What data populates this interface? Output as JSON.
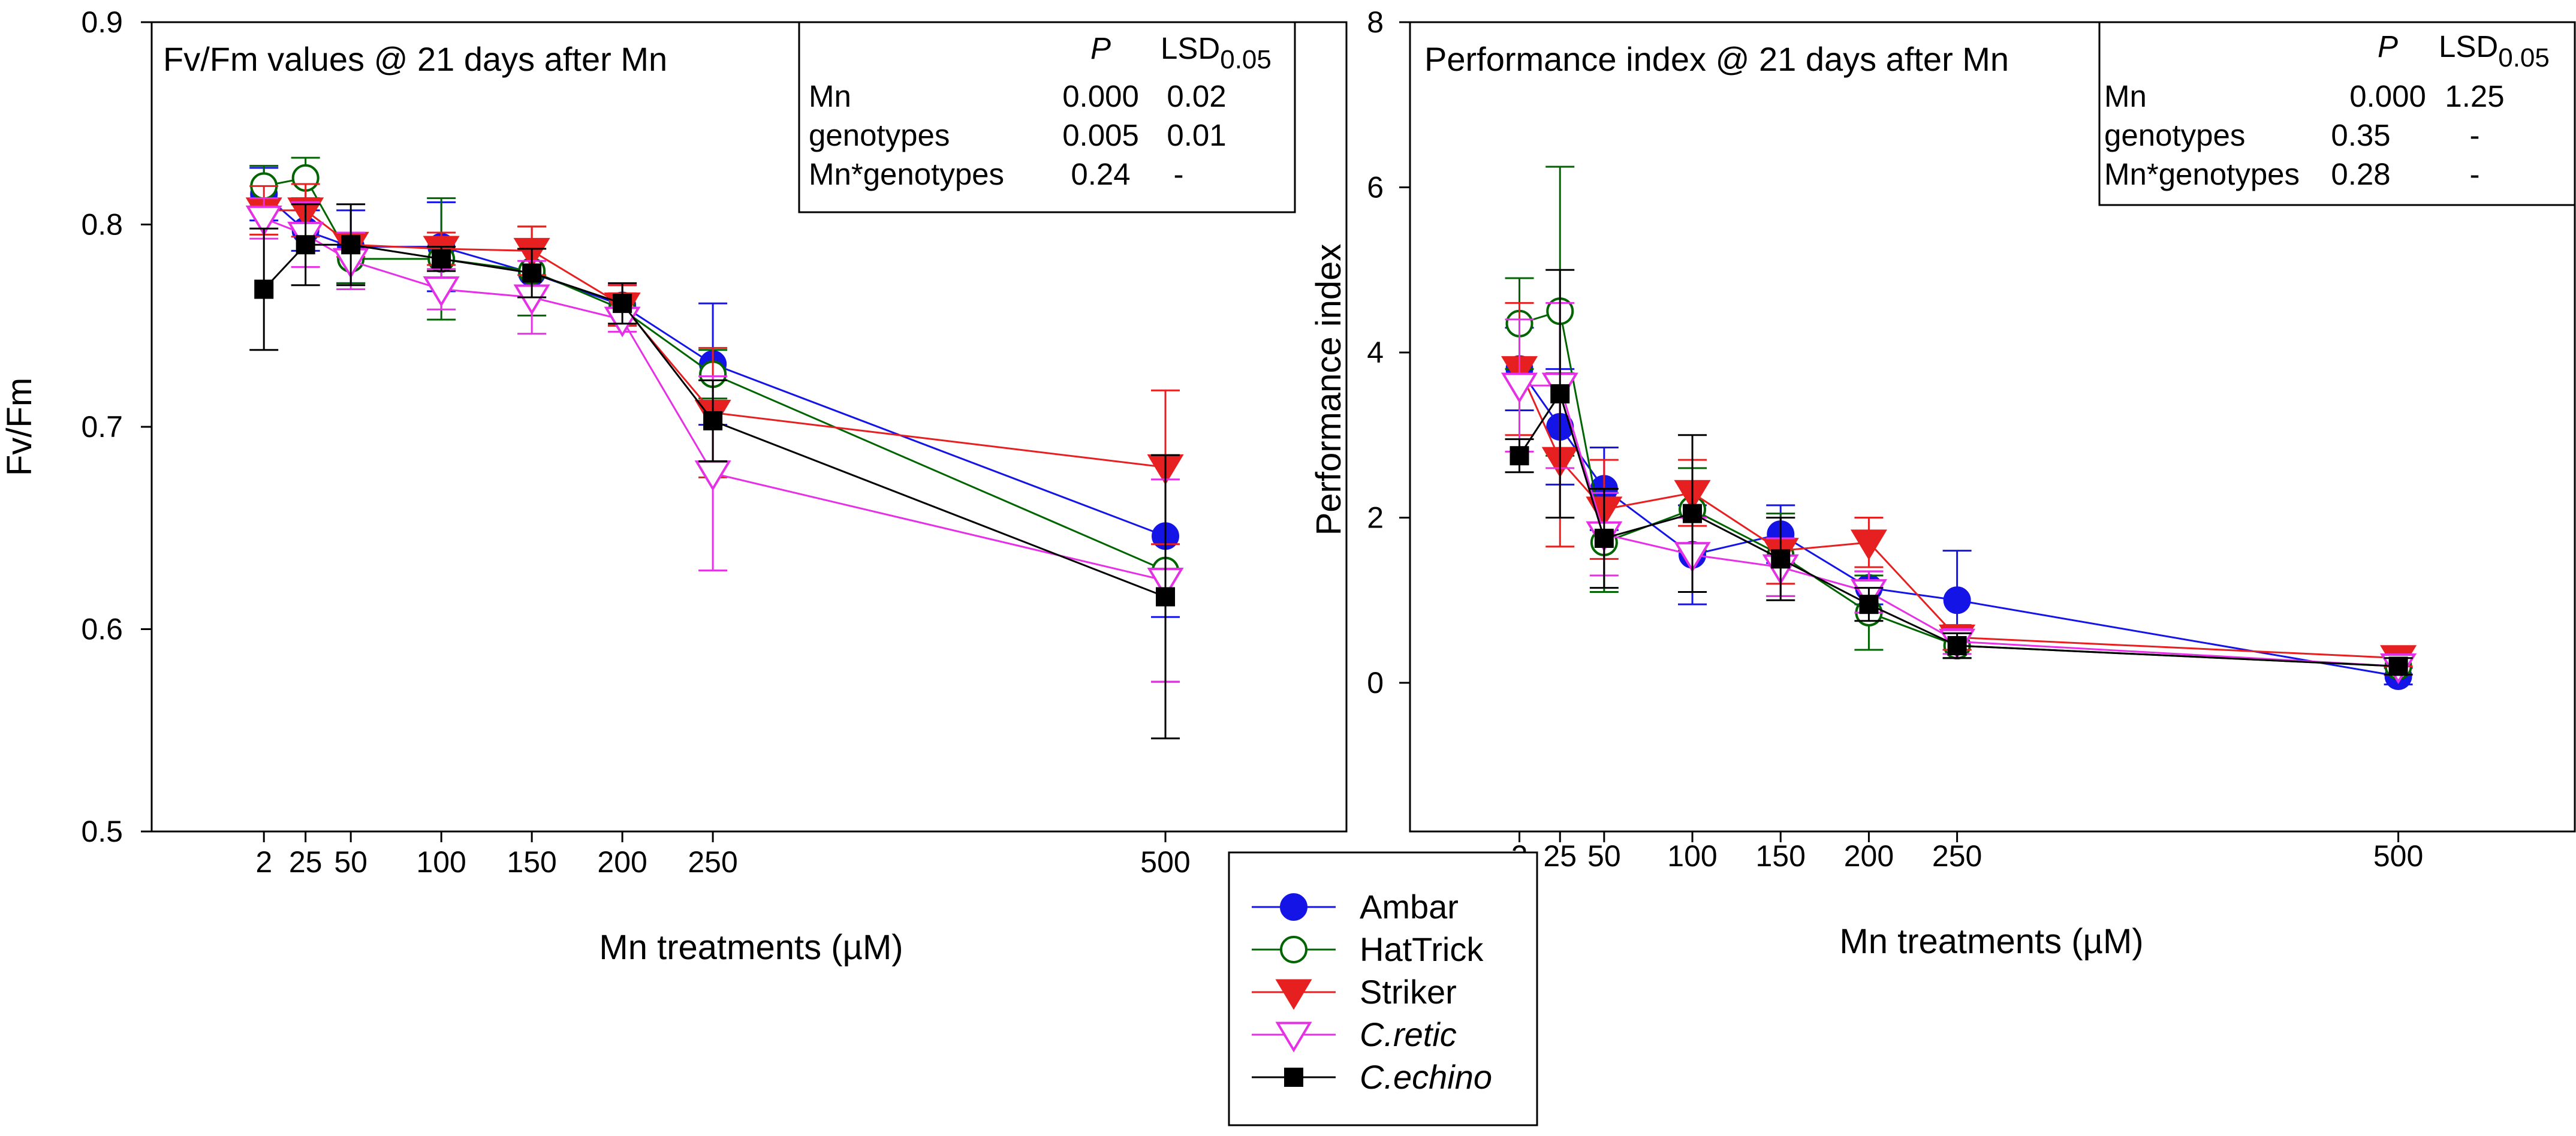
{
  "chart_data": [
    {
      "type": "line",
      "title": "Fv/Fm values @ 21 days after Mn",
      "xlabel": "Mn treatments (µM)",
      "ylabel": "Fv/Fm",
      "xlim": [
        -60,
        600
      ],
      "ylim": [
        0.5,
        0.9
      ],
      "x_ticks": [
        2,
        25,
        50,
        100,
        150,
        200,
        250,
        500
      ],
      "y_ticks": [
        0.5,
        0.6,
        0.7,
        0.8,
        0.9
      ],
      "x_tick_labels": [
        "2",
        "25",
        "50",
        "100",
        "150",
        "200",
        "250",
        "500"
      ],
      "y_tick_labels": [
        "0.5",
        "0.6",
        "0.7",
        "0.8",
        "0.9"
      ],
      "x": [
        2,
        25,
        50,
        100,
        150,
        200,
        250,
        500
      ],
      "series": [
        {
          "name": "Ambar",
          "color": "#1414e6",
          "marker": "circle-filled",
          "values": [
            0.815,
            0.797,
            0.789,
            0.789,
            0.776,
            0.76,
            0.731,
            0.646
          ],
          "errors": [
            0.013,
            0.01,
            0.018,
            0.022,
            0.012,
            0.01,
            0.03,
            0.04
          ]
        },
        {
          "name": "HatTrick",
          "color": "#006400",
          "marker": "circle-open",
          "values": [
            0.819,
            0.823,
            0.783,
            0.783,
            0.777,
            0.758,
            0.726,
            0.629
          ],
          "errors": [
            0.01,
            0.01,
            0.012,
            0.03,
            0.022,
            0.008,
            0.012,
            0.055
          ]
        },
        {
          "name": "Striker",
          "color": "#e62020",
          "marker": "triangle-down-filled",
          "values": [
            0.807,
            0.807,
            0.79,
            0.788,
            0.787,
            0.76,
            0.707,
            0.68
          ],
          "errors": [
            0.012,
            0.013,
            0.006,
            0.008,
            0.012,
            0.01,
            0.032,
            0.038
          ]
        },
        {
          "name": "C.retic",
          "color": "#e630e6",
          "marker": "triangle-down-open",
          "values": [
            0.803,
            0.795,
            0.782,
            0.768,
            0.764,
            0.753,
            0.677,
            0.624
          ],
          "errors": [
            0.01,
            0.016,
            0.014,
            0.01,
            0.018,
            0.006,
            0.048,
            0.05
          ]
        },
        {
          "name": "C.echino",
          "color": "#000000",
          "marker": "square-filled",
          "values": [
            0.768,
            0.79,
            0.79,
            0.783,
            0.776,
            0.761,
            0.703,
            0.616
          ],
          "errors": [
            0.03,
            0.02,
            0.02,
            0.006,
            0.012,
            0.01,
            0.02,
            0.07
          ]
        }
      ],
      "stats_table": {
        "headers": [
          "",
          "P",
          "LSD",
          "0.05"
        ],
        "rows": [
          [
            "Mn",
            "0.000",
            "0.02"
          ],
          [
            "genotypes",
            "0.005",
            "0.01"
          ],
          [
            "Mn*genotypes",
            "0.24",
            "-"
          ]
        ]
      }
    },
    {
      "type": "line",
      "title": "Performance index @ 21 days after Mn",
      "xlabel": "Mn treatments (µM)",
      "ylabel": "Performance index",
      "xlim": [
        -60,
        600
      ],
      "ylim": [
        -1.8,
        8
      ],
      "x_ticks": [
        2,
        25,
        50,
        100,
        150,
        200,
        250,
        500
      ],
      "y_ticks": [
        0,
        2,
        4,
        6,
        8
      ],
      "x_tick_labels": [
        "2",
        "25",
        "50",
        "100",
        "150",
        "200",
        "250",
        "500"
      ],
      "y_tick_labels": [
        "0",
        "2",
        "4",
        "6",
        "8"
      ],
      "x": [
        2,
        25,
        50,
        100,
        150,
        200,
        250,
        500
      ],
      "series": [
        {
          "name": "Ambar",
          "color": "#1414e6",
          "marker": "circle-filled",
          "values": [
            3.8,
            3.1,
            2.35,
            1.55,
            1.8,
            1.15,
            1.0,
            0.08
          ],
          "errors": [
            0.5,
            0.7,
            0.5,
            0.6,
            0.35,
            0.2,
            0.6,
            0.1
          ]
        },
        {
          "name": "HatTrick",
          "color": "#006400",
          "marker": "circle-open",
          "values": [
            4.35,
            4.5,
            1.7,
            2.1,
            1.55,
            0.85,
            0.45,
            0.2
          ],
          "errors": [
            0.55,
            1.75,
            0.6,
            0.5,
            0.5,
            0.45,
            0.15,
            0.1
          ]
        },
        {
          "name": "Striker",
          "color": "#e62020",
          "marker": "triangle-down-filled",
          "values": [
            3.8,
            2.7,
            2.1,
            2.3,
            1.6,
            1.7,
            0.55,
            0.3
          ],
          "errors": [
            0.8,
            1.05,
            0.6,
            0.4,
            0.4,
            0.3,
            0.15,
            0.1
          ]
        },
        {
          "name": "C.retic",
          "color": "#e630e6",
          "marker": "triangle-down-open",
          "values": [
            3.6,
            3.6,
            1.8,
            1.55,
            1.4,
            1.1,
            0.5,
            0.2
          ],
          "errors": [
            0.8,
            1.0,
            0.5,
            0.45,
            0.35,
            0.25,
            0.15,
            0.1
          ]
        },
        {
          "name": "C.echino",
          "color": "#000000",
          "marker": "square-filled",
          "values": [
            2.75,
            3.5,
            1.75,
            2.05,
            1.5,
            0.95,
            0.45,
            0.2
          ],
          "errors": [
            0.2,
            1.5,
            0.6,
            0.95,
            0.5,
            0.2,
            0.15,
            0.1
          ]
        }
      ],
      "stats_table": {
        "headers": [
          "",
          "P",
          "LSD",
          "0.05"
        ],
        "rows": [
          [
            "Mn",
            "0.000",
            "1.25"
          ],
          [
            "genotypes",
            "0.35",
            "-"
          ],
          [
            "Mn*genotypes",
            "0.28",
            "-"
          ]
        ]
      }
    }
  ],
  "legend": {
    "entries": [
      {
        "name": "Ambar",
        "italic": false
      },
      {
        "name": "HatTrick",
        "italic": false
      },
      {
        "name": "Striker",
        "italic": false
      },
      {
        "name": "C.retic",
        "italic": true
      },
      {
        "name": "C.echino",
        "italic": true
      }
    ]
  }
}
